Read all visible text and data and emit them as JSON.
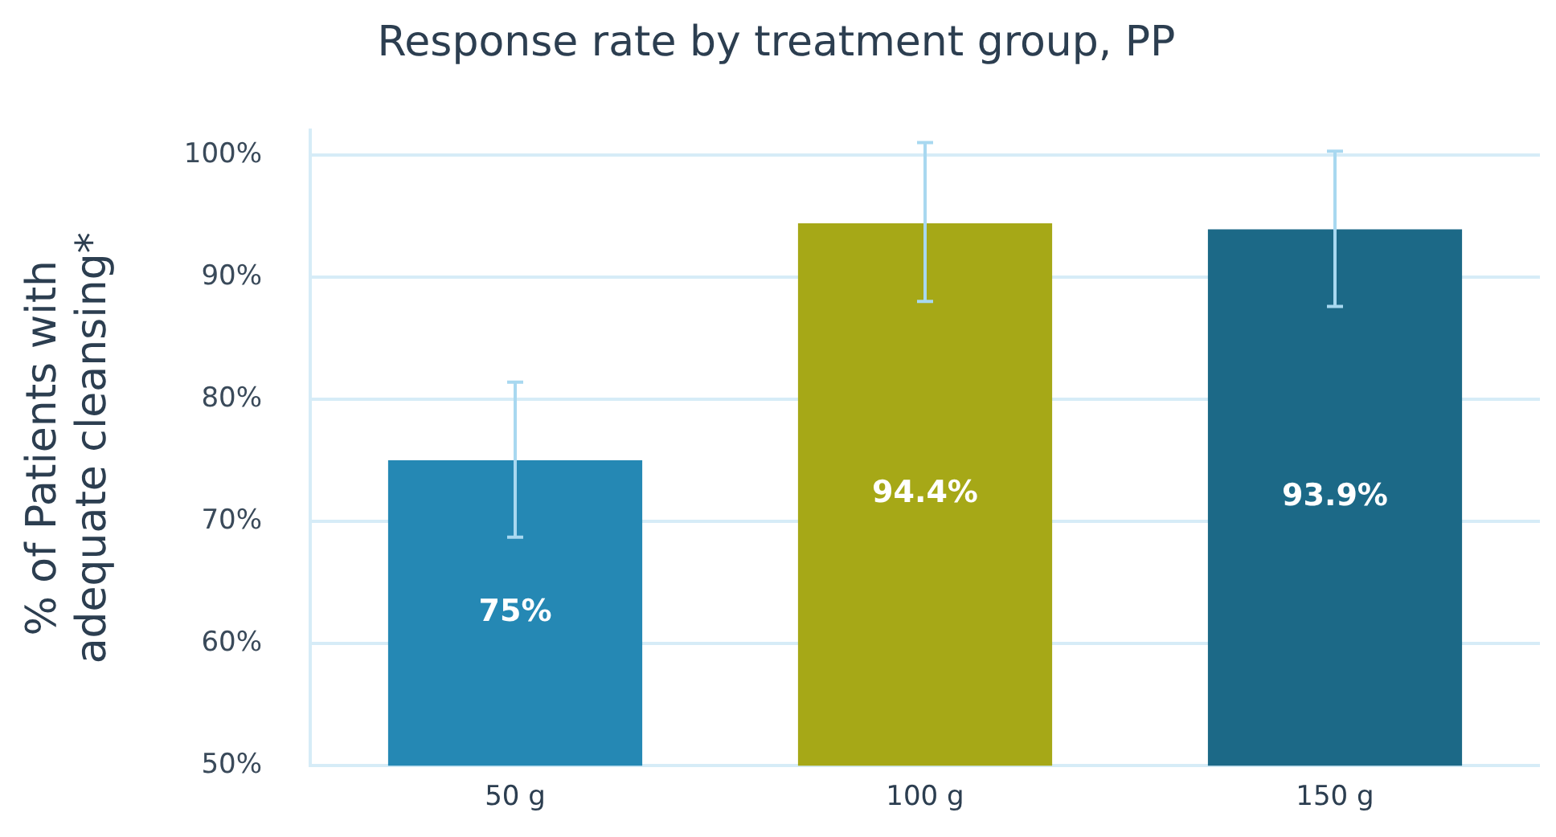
{
  "chart_data": {
    "type": "bar",
    "title": "Response rate by treatment group, PP",
    "ylabel": "% of Patients with adequate cleansing*",
    "categories": [
      "50 g",
      "100 g",
      "150 g"
    ],
    "values": [
      75,
      94.4,
      93.9
    ],
    "colors": [
      "#2588b4",
      "#a6a817",
      "#1c6987"
    ],
    "errors": [
      [
        68.7,
        81.4
      ],
      [
        88.0,
        101.0
      ],
      [
        87.6,
        100.3
      ]
    ],
    "value_labels": [
      "75%",
      "94.4%",
      "93.9%"
    ],
    "ylim": [
      50,
      102
    ],
    "yticks": [
      {
        "value": 50,
        "label": "50%"
      },
      {
        "value": 60,
        "label": "60%"
      },
      {
        "value": 70,
        "label": "70%"
      },
      {
        "value": 80,
        "label": "80%"
      },
      {
        "value": 90,
        "label": "90%"
      },
      {
        "value": 100,
        "label": "100%"
      }
    ],
    "grid": "y"
  }
}
